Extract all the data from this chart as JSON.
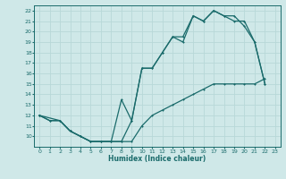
{
  "xlabel": "Humidex (Indice chaleur)",
  "bg_color": "#cfe8e8",
  "grid_color": "#b8d8d8",
  "line_color": "#1a6b6b",
  "xlim": [
    -0.5,
    23.5
  ],
  "ylim": [
    9,
    22.5
  ],
  "xticks": [
    0,
    1,
    2,
    3,
    4,
    5,
    6,
    7,
    8,
    9,
    10,
    11,
    12,
    13,
    14,
    15,
    16,
    17,
    18,
    19,
    20,
    21,
    22,
    23
  ],
  "yticks": [
    10,
    11,
    12,
    13,
    14,
    15,
    16,
    17,
    18,
    19,
    20,
    21,
    22
  ],
  "line1_x": [
    0,
    1,
    2,
    3,
    4,
    5,
    6,
    7,
    8,
    9,
    10,
    11,
    12,
    13,
    14,
    15,
    16,
    17,
    18,
    19,
    20,
    21,
    22
  ],
  "line1_y": [
    12,
    11.5,
    11.5,
    10.5,
    10,
    9.5,
    9.5,
    9.5,
    9.5,
    11.5,
    16.5,
    16.5,
    18,
    19.5,
    19,
    21.5,
    21,
    22,
    21.5,
    21.5,
    20.5,
    19,
    15
  ],
  "line2_x": [
    0,
    1,
    2,
    3,
    4,
    5,
    6,
    7,
    8,
    9,
    10,
    11,
    12,
    13,
    14,
    15,
    16,
    17,
    18,
    19,
    20,
    21,
    22
  ],
  "line2_y": [
    12,
    11.5,
    11.5,
    10.5,
    10,
    9.5,
    9.5,
    9.5,
    13.5,
    11.5,
    16.5,
    16.5,
    18,
    19.5,
    19.5,
    21.5,
    21,
    22,
    21.5,
    21,
    21,
    19,
    15
  ],
  "line3_x": [
    0,
    2,
    3,
    4,
    5,
    6,
    7,
    8,
    9,
    10,
    11,
    12,
    13,
    14,
    15,
    16,
    17,
    18,
    19,
    20,
    21,
    22
  ],
  "line3_y": [
    12,
    11.5,
    10.5,
    10,
    9.5,
    9.5,
    9.5,
    9.5,
    9.5,
    11,
    12,
    12.5,
    13,
    13.5,
    14,
    14.5,
    15,
    15,
    15,
    15,
    15,
    15.5
  ]
}
